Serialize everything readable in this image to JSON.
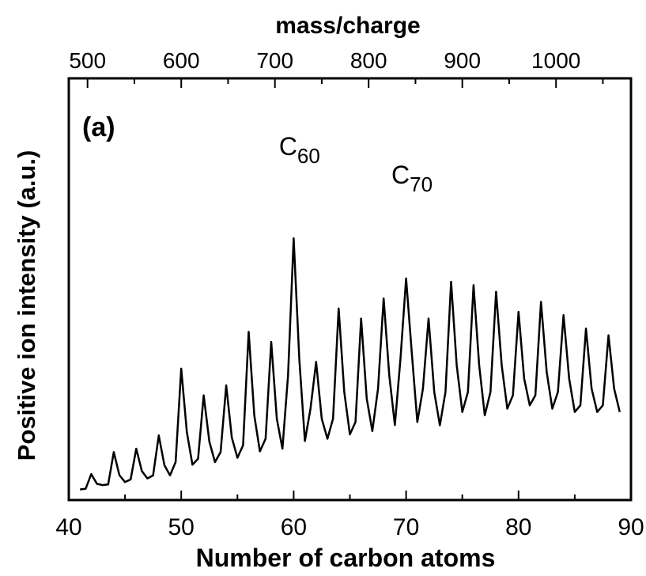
{
  "chart_data": {
    "type": "line",
    "panel_label": "(a)",
    "xlabel": "Number of carbon atoms",
    "ylabel": "Positive ion intensity (a.u.)",
    "top_xlabel": "mass/charge",
    "xlim": [
      40,
      90
    ],
    "ylim": [
      0,
      100
    ],
    "top_xlim": [
      480,
      1080
    ],
    "x_ticks": [
      40,
      50,
      60,
      70,
      80,
      90
    ],
    "top_ticks": [
      500,
      600,
      700,
      800,
      900,
      1000
    ],
    "y_ticks_labeled": false,
    "grid": false,
    "legend": "none",
    "annotations": [
      {
        "label": "C",
        "subscript": "60",
        "x": 60.1
      },
      {
        "label": "C",
        "subscript": "70",
        "x": 70.1
      }
    ],
    "series": [
      {
        "x": [
          41.0,
          41.5,
          42.0,
          42.5,
          43.0,
          43.5,
          44.0,
          44.5,
          45.0,
          45.5,
          46.0,
          46.5,
          47.0,
          47.5,
          48.0,
          48.5,
          49.0,
          49.5,
          50.0,
          50.5,
          51.0,
          51.5,
          52.0,
          52.5,
          53.0,
          53.5,
          54.0,
          54.5,
          55.0,
          55.5,
          56.0,
          56.5,
          57.0,
          57.5,
          58.0,
          58.5,
          59.0,
          59.5,
          60.0,
          60.5,
          61.0,
          61.5,
          62.0,
          62.5,
          63.0,
          63.5,
          64.0,
          64.5,
          65.0,
          65.5,
          66.0,
          66.5,
          67.0,
          67.5,
          68.0,
          68.5,
          69.0,
          69.5,
          70.0,
          70.5,
          71.0,
          71.5,
          72.0,
          72.5,
          73.0,
          73.5,
          74.0,
          74.5,
          75.0,
          75.5,
          76.0,
          76.5,
          77.0,
          77.5,
          78.0,
          78.5,
          79.0,
          79.5,
          80.0,
          80.5,
          81.0,
          81.5,
          82.0,
          82.5,
          83.0,
          83.5,
          84.0,
          84.5,
          85.0,
          85.5,
          86.0,
          86.5,
          87.0,
          87.5,
          88.0,
          88.5,
          89.0
        ],
        "y": [
          0.8,
          1.0,
          5.4,
          2.5,
          2.1,
          2.3,
          12.0,
          5.1,
          3.0,
          3.8,
          13.0,
          6.3,
          4.1,
          5.0,
          17.0,
          8.1,
          5.0,
          9.0,
          37.0,
          18.0,
          8.2,
          10.0,
          29.0,
          15.1,
          9.0,
          12.0,
          32.0,
          16.3,
          10.3,
          14.0,
          48.0,
          23.0,
          12.2,
          16.0,
          45.0,
          22.0,
          13.0,
          35.0,
          76.0,
          40.0,
          15.3,
          25.0,
          39.0,
          22.0,
          16.0,
          22.0,
          55.0,
          30.0,
          17.3,
          21.0,
          52.0,
          28.0,
          18.3,
          31.0,
          58.0,
          35.0,
          20.1,
          40.0,
          64.0,
          42.0,
          21.0,
          31.0,
          52.0,
          30.0,
          20.0,
          30.0,
          63.0,
          38.0,
          24.0,
          30.0,
          62.0,
          38.0,
          23.0,
          30.0,
          60.0,
          38.0,
          25.0,
          29.0,
          54.0,
          34.0,
          26.0,
          29.0,
          57.0,
          36.0,
          25.0,
          30.0,
          53.0,
          34.0,
          24.0,
          26.0,
          49.0,
          31.0,
          24.0,
          26.0,
          47.0,
          31.0,
          24.0
        ]
      }
    ]
  }
}
